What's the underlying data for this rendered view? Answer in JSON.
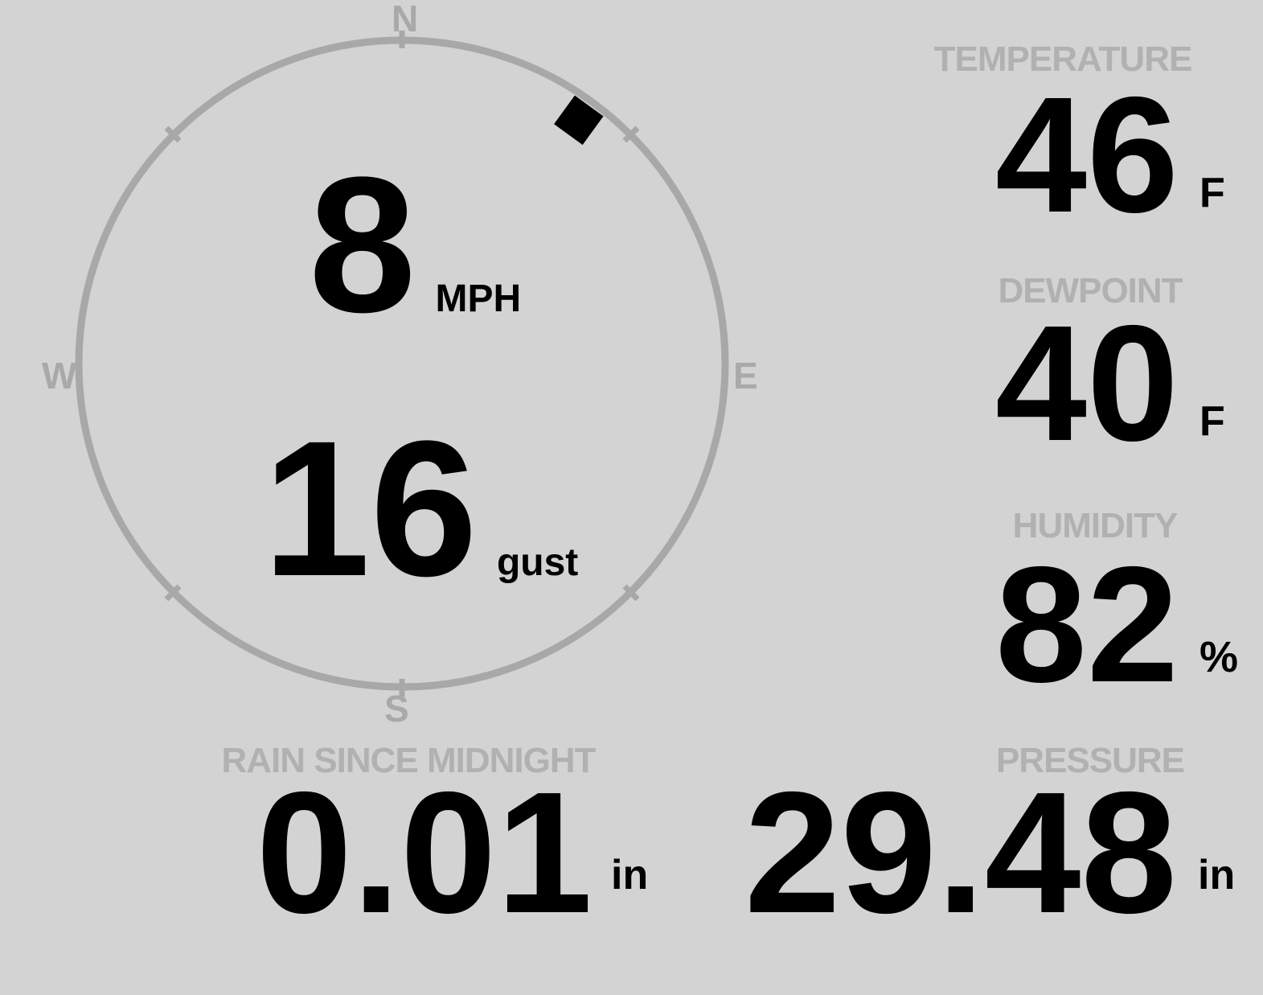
{
  "theme": {
    "background": "#d3d3d3",
    "ring_color": "#a8a8a8",
    "cardinal_color": "#a9a9a9",
    "section_label_color": "#b1b1b1",
    "value_color": "#000000"
  },
  "compass": {
    "cardinals": {
      "north": "N",
      "east": "E",
      "south": "S",
      "west": "W"
    },
    "wind": {
      "speed": "8",
      "speed_unit": "MPH",
      "gust": "16",
      "gust_unit": "gust",
      "direction_deg": 36
    }
  },
  "metrics": {
    "temperature": {
      "label": "TEMPERATURE",
      "value": "46",
      "unit": "F"
    },
    "dewpoint": {
      "label": "DEWPOINT",
      "value": "40",
      "unit": "F"
    },
    "humidity": {
      "label": "HUMIDITY",
      "value": "82",
      "unit": "%"
    },
    "rain": {
      "label": "RAIN SINCE MIDNIGHT",
      "value": "0.01",
      "unit": "in"
    },
    "pressure": {
      "label": "PRESSURE",
      "value": "29.48",
      "unit": "in"
    }
  }
}
